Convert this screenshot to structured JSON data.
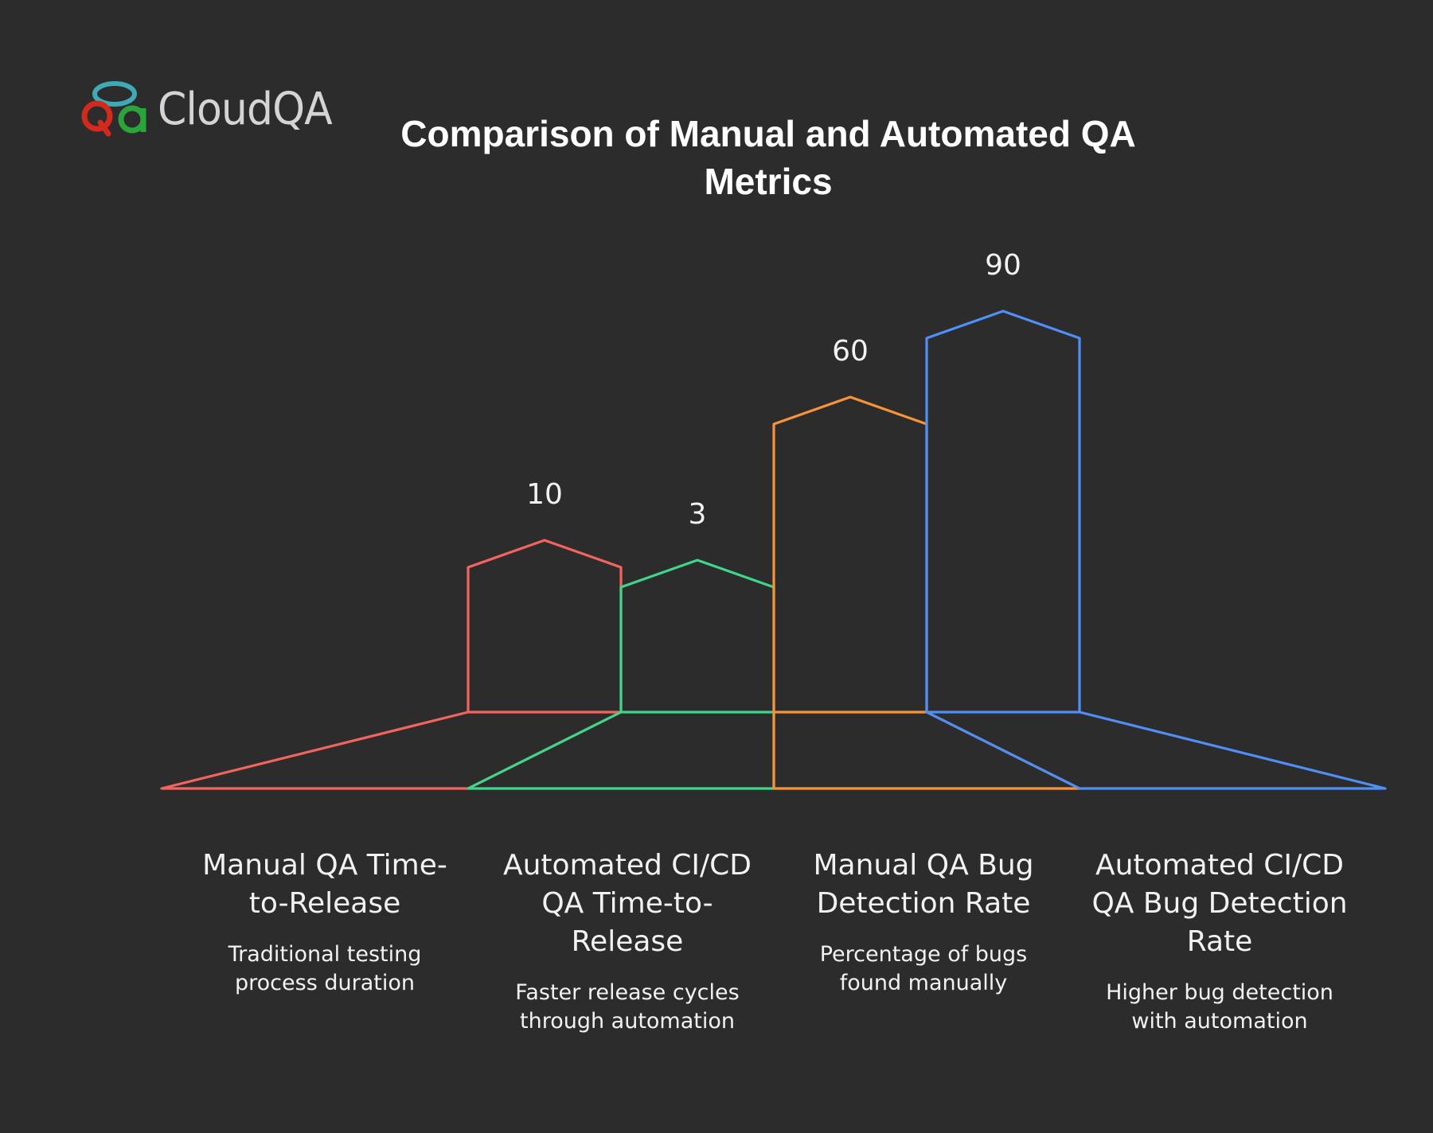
{
  "logo": {
    "text": "CloudQA",
    "mark_colors": {
      "ring": "#3fa9b5",
      "q": "#d42a1e",
      "a": "#2aa53a"
    }
  },
  "title": {
    "line1": "Comparison of Manual and Automated QA",
    "line2": "Metrics"
  },
  "colors": {
    "background": "#2c2c2c",
    "series": [
      "#f4645f",
      "#3ed68a",
      "#f7943a",
      "#4f8ff7"
    ]
  },
  "categories": [
    {
      "title_lines": [
        "Manual QA Time-",
        "to-Release"
      ],
      "desc_lines": [
        "Traditional testing",
        "process duration"
      ],
      "value": "10"
    },
    {
      "title_lines": [
        "Automated CI/CD",
        "QA Time-to-",
        "Release"
      ],
      "desc_lines": [
        "Faster release cycles",
        "through automation"
      ],
      "value": "3"
    },
    {
      "title_lines": [
        "Manual QA Bug",
        "Detection Rate"
      ],
      "desc_lines": [
        "Percentage of bugs",
        "found manually"
      ],
      "value": "60"
    },
    {
      "title_lines": [
        "Automated CI/CD",
        "QA Bug Detection",
        "Rate"
      ],
      "desc_lines": [
        "Higher bug detection",
        "with automation"
      ],
      "value": "90"
    }
  ],
  "chart_data": {
    "type": "bar",
    "title": "Comparison of Manual and Automated QA Metrics",
    "categories": [
      "Manual QA Time-to-Release",
      "Automated CI/CD QA Time-to-Release",
      "Manual QA Bug Detection Rate",
      "Automated CI/CD QA Bug Detection Rate"
    ],
    "descriptions": [
      "Traditional testing process duration",
      "Faster release cycles through automation",
      "Percentage of bugs found manually",
      "Higher bug detection with automation"
    ],
    "values": [
      10,
      3,
      60,
      90
    ],
    "data_labels": [
      "10",
      "3",
      "60",
      "90"
    ],
    "xlabel": "",
    "ylabel": "",
    "grid": false,
    "legend": "none (category labels below each bar)",
    "style": "outlined pentagon-topped bars with perspective funnel base"
  }
}
